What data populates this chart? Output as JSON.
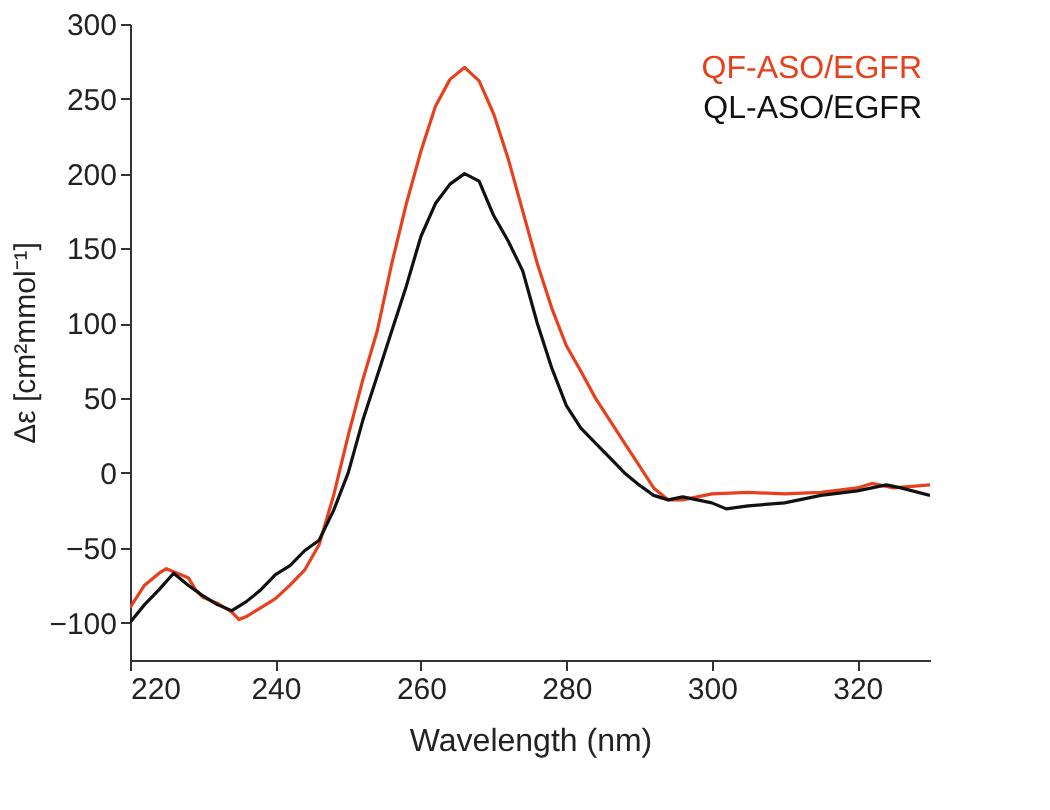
{
  "chart_data": {
    "type": "line",
    "xlabel": "Wavelength (nm)",
    "ylabel": "Δε [cm²mmol⁻¹]",
    "xlim": [
      220,
      330
    ],
    "xticks": [
      220,
      240,
      260,
      280,
      300,
      320
    ],
    "ylim": [
      -125,
      300
    ],
    "yticks": [
      -100,
      -50,
      0,
      50,
      100,
      150,
      200,
      250,
      300
    ],
    "grid": false,
    "legend": "top right",
    "marker": "none",
    "line_style": "solid",
    "series": [
      {
        "name": "QF-ASO/EGFR",
        "color": "#e8401c",
        "x": [
          220,
          222,
          224,
          225,
          226,
          228,
          229,
          230,
          232,
          234,
          235,
          236,
          238,
          240,
          242,
          244,
          246,
          248,
          250,
          252,
          254,
          256,
          258,
          260,
          262,
          264,
          266,
          268,
          270,
          272,
          274,
          276,
          278,
          280,
          282,
          284,
          286,
          288,
          290,
          292,
          294,
          296,
          298,
          300,
          305,
          310,
          315,
          320,
          322,
          325,
          330
        ],
        "values": [
          -90,
          -75,
          -67,
          -64,
          -66,
          -70,
          -78,
          -83,
          -87,
          -93,
          -98,
          -96,
          -90,
          -84,
          -75,
          -65,
          -48,
          -15,
          25,
          62,
          95,
          140,
          180,
          215,
          245,
          263,
          271,
          262,
          240,
          210,
          175,
          140,
          110,
          85,
          68,
          50,
          35,
          20,
          5,
          -10,
          -18,
          -18,
          -16,
          -14,
          -13,
          -14,
          -13,
          -10,
          -7,
          -10,
          -8
        ]
      },
      {
        "name": "QL-ASO/EGFR",
        "color": "#111111",
        "x": [
          220,
          222,
          224,
          226,
          228,
          230,
          232,
          234,
          236,
          238,
          240,
          242,
          244,
          246,
          248,
          250,
          252,
          254,
          256,
          258,
          260,
          262,
          264,
          266,
          268,
          270,
          272,
          274,
          276,
          278,
          280,
          282,
          284,
          286,
          288,
          290,
          292,
          294,
          296,
          298,
          300,
          302,
          305,
          310,
          315,
          320,
          324,
          326,
          330
        ],
        "values": [
          -100,
          -88,
          -78,
          -67,
          -75,
          -82,
          -88,
          -92,
          -86,
          -78,
          -68,
          -62,
          -52,
          -45,
          -25,
          0,
          35,
          65,
          95,
          125,
          158,
          180,
          193,
          200,
          195,
          172,
          155,
          135,
          100,
          70,
          45,
          30,
          20,
          10,
          0,
          -8,
          -15,
          -18,
          -16,
          -18,
          -20,
          -24,
          -22,
          -20,
          -15,
          -12,
          -8,
          -10,
          -15
        ]
      }
    ]
  }
}
